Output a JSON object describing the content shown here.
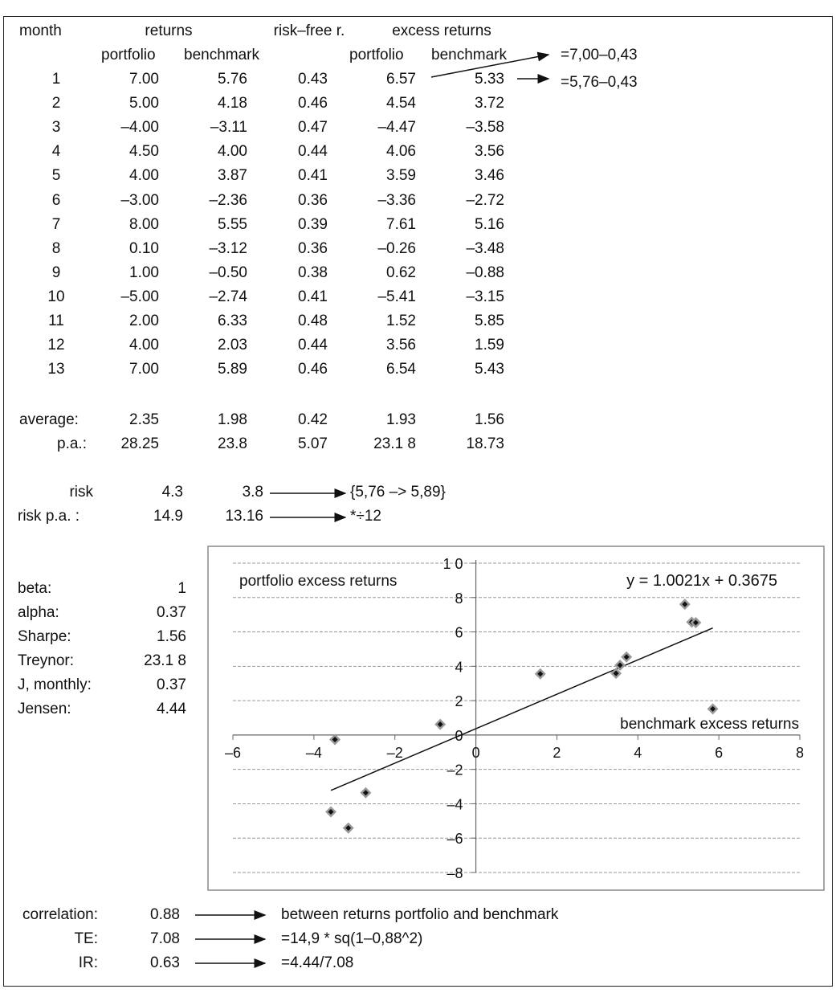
{
  "headers": {
    "month": "month",
    "returns": "returns",
    "riskfree": "risk–free r.",
    "excess": "excess returns",
    "portfolio": "portfolio",
    "benchmark": "benchmark",
    "portfolio2": "portfolio",
    "benchmark2": "benchmark"
  },
  "rows": [
    {
      "m": "1",
      "p": "7.00",
      "b": "5.76",
      "rf": "0.43",
      "ep": "6.57",
      "eb": "5.33"
    },
    {
      "m": "2",
      "p": "5.00",
      "b": "4.18",
      "rf": "0.46",
      "ep": "4.54",
      "eb": "3.72"
    },
    {
      "m": "3",
      "p": "–4.00",
      "b": "–3.11",
      "rf": "0.47",
      "ep": "–4.47",
      "eb": "–3.58"
    },
    {
      "m": "4",
      "p": "4.50",
      "b": "4.00",
      "rf": "0.44",
      "ep": "4.06",
      "eb": "3.56"
    },
    {
      "m": "5",
      "p": "4.00",
      "b": "3.87",
      "rf": "0.41",
      "ep": "3.59",
      "eb": "3.46"
    },
    {
      "m": "6",
      "p": "–3.00",
      "b": "–2.36",
      "rf": "0.36",
      "ep": "–3.36",
      "eb": "–2.72"
    },
    {
      "m": "7",
      "p": "8.00",
      "b": "5.55",
      "rf": "0.39",
      "ep": "7.61",
      "eb": "5.16"
    },
    {
      "m": "8",
      "p": "0.10",
      "b": "–3.12",
      "rf": "0.36",
      "ep": "–0.26",
      "eb": "–3.48"
    },
    {
      "m": "9",
      "p": "1.00",
      "b": "–0.50",
      "rf": "0.38",
      "ep": "0.62",
      "eb": "–0.88"
    },
    {
      "m": "10",
      "p": "–5.00",
      "b": "–2.74",
      "rf": "0.41",
      "ep": "–5.41",
      "eb": "–3.15"
    },
    {
      "m": "11",
      "p": "2.00",
      "b": "6.33",
      "rf": "0.48",
      "ep": "1.52",
      "eb": "5.85"
    },
    {
      "m": "12",
      "p": "4.00",
      "b": "2.03",
      "rf": "0.44",
      "ep": "3.56",
      "eb": "1.59"
    },
    {
      "m": "13",
      "p": "7.00",
      "b": "5.89",
      "rf": "0.46",
      "ep": "6.54",
      "eb": "5.43"
    }
  ],
  "annotations": {
    "formula1": "=7,00–0,43",
    "formula2": "=5,76–0,43"
  },
  "average": {
    "label": "average:",
    "p": "2.35",
    "b": "1.98",
    "rf": "0.42",
    "ep": "1.93",
    "eb": "1.56"
  },
  "pa": {
    "label": "p.a.:",
    "p": "28.25",
    "b": "23.8",
    "rf": "5.07",
    "ep": "23.1 8",
    "eb": "18.73"
  },
  "risk": {
    "label": "risk",
    "p": "4.3",
    "b": "3.8",
    "note": "{5,76 –> 5,89}"
  },
  "riskpa": {
    "label": "risk p.a. :",
    "p": "14.9",
    "b": "13.16",
    "note": "*÷12"
  },
  "stats": [
    {
      "label": "beta:",
      "value": "1"
    },
    {
      "label": "alpha:",
      "value": "0.37"
    },
    {
      "label": "Sharpe:",
      "value": "1.56"
    },
    {
      "label": "Treynor:",
      "value": "23.1 8"
    },
    {
      "label": "J, monthly:",
      "value": "0.37"
    },
    {
      "label": "Jensen:",
      "value": "4.44"
    }
  ],
  "bottom": [
    {
      "label": "correlation:",
      "value": "0.88",
      "note": "between returns portfolio and benchmark"
    },
    {
      "label": "TE:",
      "value": "7.08",
      "note": "=14,9 * sq(1–0,88^2)"
    },
    {
      "label": "IR:",
      "value": "0.63",
      "note": "=4.44/7.08"
    }
  ],
  "chart_data": {
    "type": "scatter",
    "ylabel": "portfolio excess returns",
    "xlabel": "benchmark excess returns",
    "equation": "y = 1.0021x + 0.3675",
    "xlim": [
      -6,
      8
    ],
    "ylim": [
      -8,
      10
    ],
    "xticks": [
      "–6",
      "–4",
      "–2",
      "0",
      "2",
      "4",
      "6",
      "8"
    ],
    "yticks": [
      "–8",
      "–6",
      "–4",
      "–2",
      "0",
      "2",
      "4",
      "6",
      "8",
      "1 0"
    ],
    "grid": "horizontal",
    "points": [
      {
        "x": 5.33,
        "y": 6.57
      },
      {
        "x": 3.72,
        "y": 4.54
      },
      {
        "x": -3.58,
        "y": -4.47
      },
      {
        "x": 3.56,
        "y": 4.06
      },
      {
        "x": 3.46,
        "y": 3.59
      },
      {
        "x": -2.72,
        "y": -3.36
      },
      {
        "x": 5.16,
        "y": 7.61
      },
      {
        "x": -3.48,
        "y": -0.26
      },
      {
        "x": -0.88,
        "y": 0.62
      },
      {
        "x": -3.15,
        "y": -5.41
      },
      {
        "x": 5.85,
        "y": 1.52
      },
      {
        "x": 1.59,
        "y": 3.56
      },
      {
        "x": 5.43,
        "y": 6.54
      }
    ],
    "trendline": {
      "slope": 1.0021,
      "intercept": 0.3675,
      "x": [
        -3.58,
        5.85
      ]
    }
  }
}
